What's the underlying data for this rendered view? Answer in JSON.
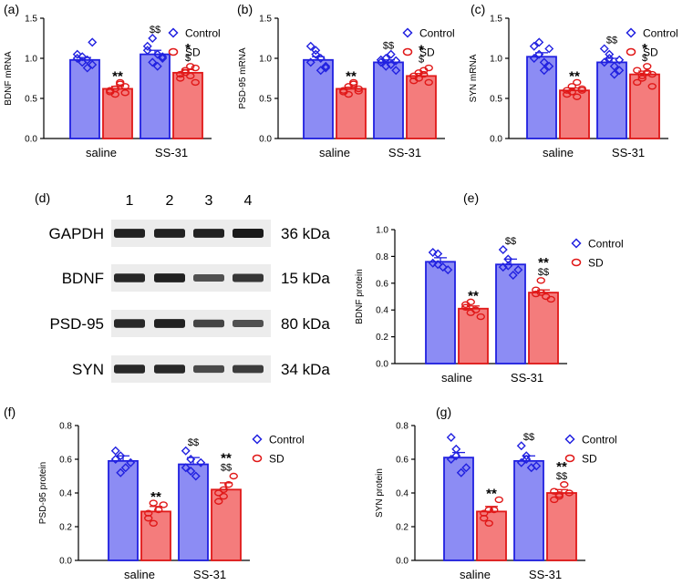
{
  "colors": {
    "control_fill": "#8c8cf4",
    "control_edge": "#2020e0",
    "sd_fill": "#f47c7c",
    "sd_edge": "#e01818",
    "blot_band": "#1a1a1a",
    "blot_bg": "#ececec"
  },
  "legend": {
    "control": "Control",
    "sd": "SD"
  },
  "blot": {
    "label": "(d)",
    "lanes": [
      "1",
      "2",
      "3",
      "4"
    ],
    "rows": [
      {
        "protein": "GAPDH",
        "size": "36 kDa",
        "intensity": [
          0.95,
          0.95,
          0.95,
          1.0
        ]
      },
      {
        "protein": "BDNF",
        "size": "15 kDa",
        "intensity": [
          0.9,
          0.95,
          0.6,
          0.8
        ]
      },
      {
        "protein": "PSD-95",
        "size": "80 kDa",
        "intensity": [
          0.9,
          0.95,
          0.7,
          0.6
        ]
      },
      {
        "protein": "SYN",
        "size": "34 kDa",
        "intensity": [
          0.9,
          0.9,
          0.65,
          0.75
        ]
      }
    ]
  },
  "chart_data": [
    {
      "id": "a",
      "label": "(a)",
      "type": "bar",
      "ylabel": "BDNF mRNA",
      "ylim": [
        0,
        1.5
      ],
      "yticks": [
        "0.0",
        "0.5",
        "1.0",
        "1.5"
      ],
      "categories": [
        "saline",
        "SS-31"
      ],
      "series": [
        {
          "name": "Control",
          "values": [
            0.98,
            1.05
          ]
        },
        {
          "name": "SD",
          "values": [
            0.62,
            0.82
          ]
        }
      ],
      "errors": [
        [
          0.03,
          0.05
        ],
        [
          0.03,
          0.04
        ]
      ],
      "points": [
        [
          [
            1.0,
            0.95,
            0.88,
            0.92,
            1.05,
            1.02,
            0.98,
            1.2
          ],
          [
            1.1,
            1.25,
            0.9,
            1.0,
            1.15,
            0.95,
            1.05,
            1.02
          ]
        ],
        [
          [
            0.58,
            0.55,
            0.7,
            0.65,
            0.6,
            0.62,
            0.68,
            0.57
          ],
          [
            0.75,
            0.85,
            0.9,
            0.7,
            0.8,
            0.82,
            0.78,
            0.88
          ]
        ]
      ],
      "annotations": [
        [
          "",
          "$$"
        ],
        [
          "**",
          "*\n$"
        ]
      ]
    },
    {
      "id": "b",
      "label": "(b)",
      "type": "bar",
      "ylabel": "PSD-95 mRNA",
      "ylim": [
        0,
        1.5
      ],
      "yticks": [
        "0.0",
        "0.5",
        "1.0",
        "1.5"
      ],
      "categories": [
        "saline",
        "SS-31"
      ],
      "series": [
        {
          "name": "Control",
          "values": [
            0.98,
            0.95
          ]
        },
        {
          "name": "SD",
          "values": [
            0.62,
            0.78
          ]
        }
      ],
      "errors": [
        [
          0.04,
          0.03
        ],
        [
          0.02,
          0.03
        ]
      ],
      "points": [
        [
          [
            1.15,
            1.1,
            0.85,
            0.9,
            0.95,
            1.05,
            1.0,
            0.88
          ],
          [
            0.98,
            0.9,
            1.05,
            0.85,
            0.95,
            1.0,
            0.92,
            0.97
          ]
        ],
        [
          [
            0.58,
            0.55,
            0.68,
            0.62,
            0.6,
            0.65,
            0.7,
            0.59
          ],
          [
            0.72,
            0.75,
            0.85,
            0.7,
            0.78,
            0.82,
            0.8,
            0.88
          ]
        ]
      ],
      "annotations": [
        [
          "",
          "$$"
        ],
        [
          "**",
          "*\n$"
        ]
      ]
    },
    {
      "id": "c",
      "label": "(c)",
      "type": "bar",
      "ylabel": "SYN mRNA",
      "ylim": [
        0,
        1.5
      ],
      "yticks": [
        "0.0",
        "0.5",
        "1.0",
        "1.5"
      ],
      "categories": [
        "saline",
        "SS-31"
      ],
      "series": [
        {
          "name": "Control",
          "values": [
            1.02,
            0.95
          ]
        },
        {
          "name": "SD",
          "values": [
            0.6,
            0.8
          ]
        }
      ],
      "errors": [
        [
          0.05,
          0.05
        ],
        [
          0.03,
          0.04
        ]
      ],
      "points": [
        [
          [
            1.15,
            1.2,
            0.85,
            0.9,
            1.0,
            1.05,
            0.95,
            1.12
          ],
          [
            1.12,
            1.05,
            0.8,
            0.85,
            0.95,
            1.0,
            0.9,
            0.98
          ]
        ],
        [
          [
            0.55,
            0.58,
            0.7,
            0.62,
            0.6,
            0.65,
            0.52,
            0.6
          ],
          [
            0.7,
            0.75,
            0.9,
            0.8,
            0.85,
            0.78,
            0.82,
            0.65
          ]
        ]
      ],
      "annotations": [
        [
          "",
          "$$"
        ],
        [
          "**",
          "*\n$"
        ]
      ]
    },
    {
      "id": "e",
      "label": "(e)",
      "type": "bar",
      "ylabel": "BDNF protein",
      "ylim": [
        0,
        1.0
      ],
      "yticks": [
        "0.0",
        "0.2",
        "0.4",
        "0.6",
        "0.8",
        "1.0"
      ],
      "categories": [
        "saline",
        "SS-31"
      ],
      "series": [
        {
          "name": "Control",
          "values": [
            0.76,
            0.74
          ]
        },
        {
          "name": "SD",
          "values": [
            0.41,
            0.53
          ]
        }
      ],
      "errors": [
        [
          0.03,
          0.04
        ],
        [
          0.02,
          0.02
        ]
      ],
      "points": [
        [
          [
            0.83,
            0.82,
            0.72,
            0.7,
            0.75,
            0.74
          ],
          [
            0.85,
            0.78,
            0.66,
            0.7,
            0.72,
            0.73
          ]
        ],
        [
          [
            0.44,
            0.38,
            0.4,
            0.35,
            0.42,
            0.46
          ],
          [
            0.55,
            0.62,
            0.5,
            0.48,
            0.52,
            0.53
          ]
        ]
      ],
      "annotations": [
        [
          "",
          "$$"
        ],
        [
          "**",
          "**\n$$"
        ]
      ]
    },
    {
      "id": "f",
      "label": "(f)",
      "type": "bar",
      "ylabel": "PSD-95 protein",
      "ylim": [
        0,
        0.8
      ],
      "yticks": [
        "0.0",
        "0.2",
        "0.4",
        "0.6",
        "0.8"
      ],
      "categories": [
        "saline",
        "SS-31"
      ],
      "series": [
        {
          "name": "Control",
          "values": [
            0.59,
            0.57
          ]
        },
        {
          "name": "SD",
          "values": [
            0.29,
            0.42
          ]
        }
      ],
      "errors": [
        [
          0.03,
          0.04
        ],
        [
          0.03,
          0.04
        ]
      ],
      "points": [
        [
          [
            0.65,
            0.62,
            0.55,
            0.58,
            0.6,
            0.52
          ],
          [
            0.65,
            0.6,
            0.5,
            0.58,
            0.55,
            0.53
          ]
        ],
        [
          [
            0.25,
            0.22,
            0.3,
            0.33,
            0.28,
            0.34
          ],
          [
            0.35,
            0.38,
            0.45,
            0.5,
            0.4,
            0.42
          ]
        ]
      ],
      "annotations": [
        [
          "",
          "$$"
        ],
        [
          "**",
          "**\n$$"
        ]
      ]
    },
    {
      "id": "g",
      "label": "(g)",
      "type": "bar",
      "ylabel": "SYN protein",
      "ylim": [
        0,
        0.8
      ],
      "yticks": [
        "0.0",
        "0.2",
        "0.4",
        "0.6",
        "0.8"
      ],
      "categories": [
        "saline",
        "SS-31"
      ],
      "series": [
        {
          "name": "Control",
          "values": [
            0.61,
            0.59
          ]
        },
        {
          "name": "SD",
          "values": [
            0.29,
            0.4
          ]
        }
      ],
      "errors": [
        [
          0.03,
          0.03
        ],
        [
          0.03,
          0.02
        ]
      ],
      "points": [
        [
          [
            0.73,
            0.66,
            0.52,
            0.55,
            0.6,
            0.62
          ],
          [
            0.68,
            0.62,
            0.55,
            0.56,
            0.58,
            0.6
          ]
        ],
        [
          [
            0.25,
            0.22,
            0.3,
            0.36,
            0.28,
            0.3
          ],
          [
            0.36,
            0.38,
            0.45,
            0.4,
            0.41,
            0.39
          ]
        ]
      ],
      "annotations": [
        [
          "",
          "$$"
        ],
        [
          "**",
          "**\n$$"
        ]
      ]
    }
  ]
}
